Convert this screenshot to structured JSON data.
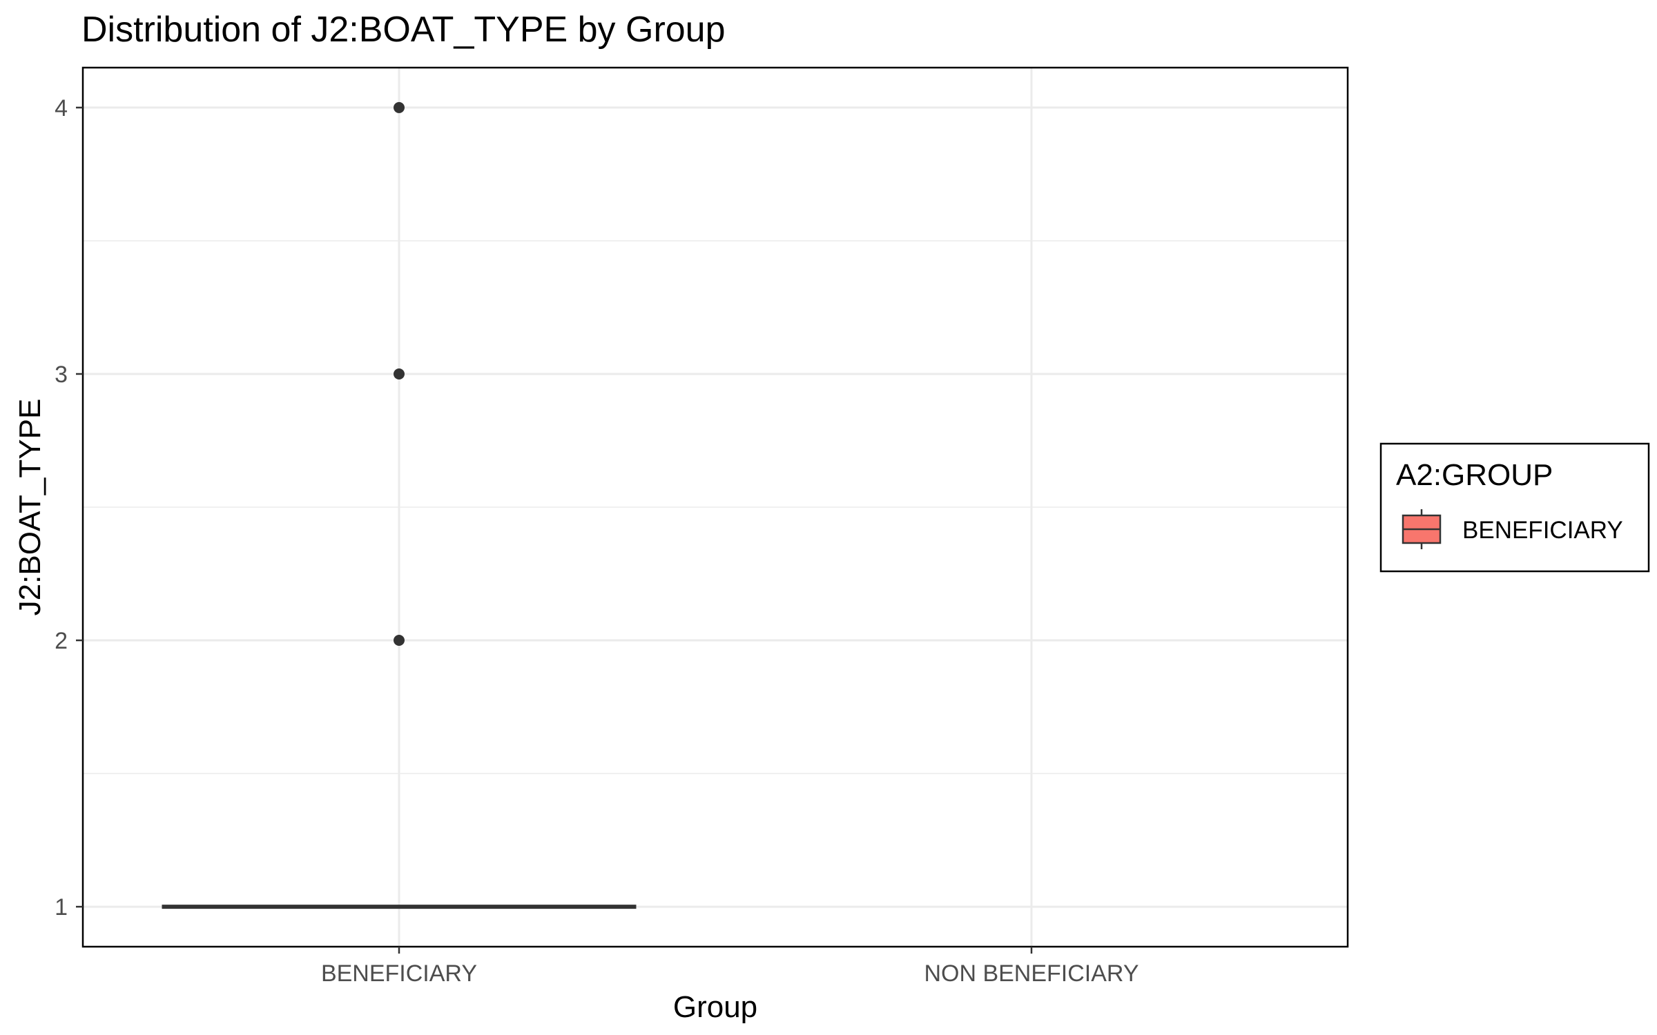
{
  "chart_data": {
    "type": "box",
    "title": "Distribution of J2:BOAT_TYPE by Group",
    "xlabel": "Group",
    "ylabel": "J2:BOAT_TYPE",
    "categories": [
      "BENEFICIARY",
      "NON BENEFICIARY"
    ],
    "ylim": [
      0.85,
      4.15
    ],
    "y_ticks": [
      1,
      2,
      3,
      4
    ],
    "grid": true,
    "series": [
      {
        "category": "BENEFICIARY",
        "q1": 1,
        "median": 1,
        "q3": 1,
        "whisker_low": 1,
        "whisker_high": 1,
        "outliers": [
          2,
          3,
          4
        ]
      }
    ],
    "legend": {
      "title": "A2:GROUP",
      "position": "right",
      "entries": [
        {
          "label": "BENEFICIARY",
          "color": "#f8766d"
        }
      ]
    },
    "colors": {
      "box_fill": "#f8766d",
      "line": "#333333",
      "grid": "#ebebeb"
    }
  }
}
